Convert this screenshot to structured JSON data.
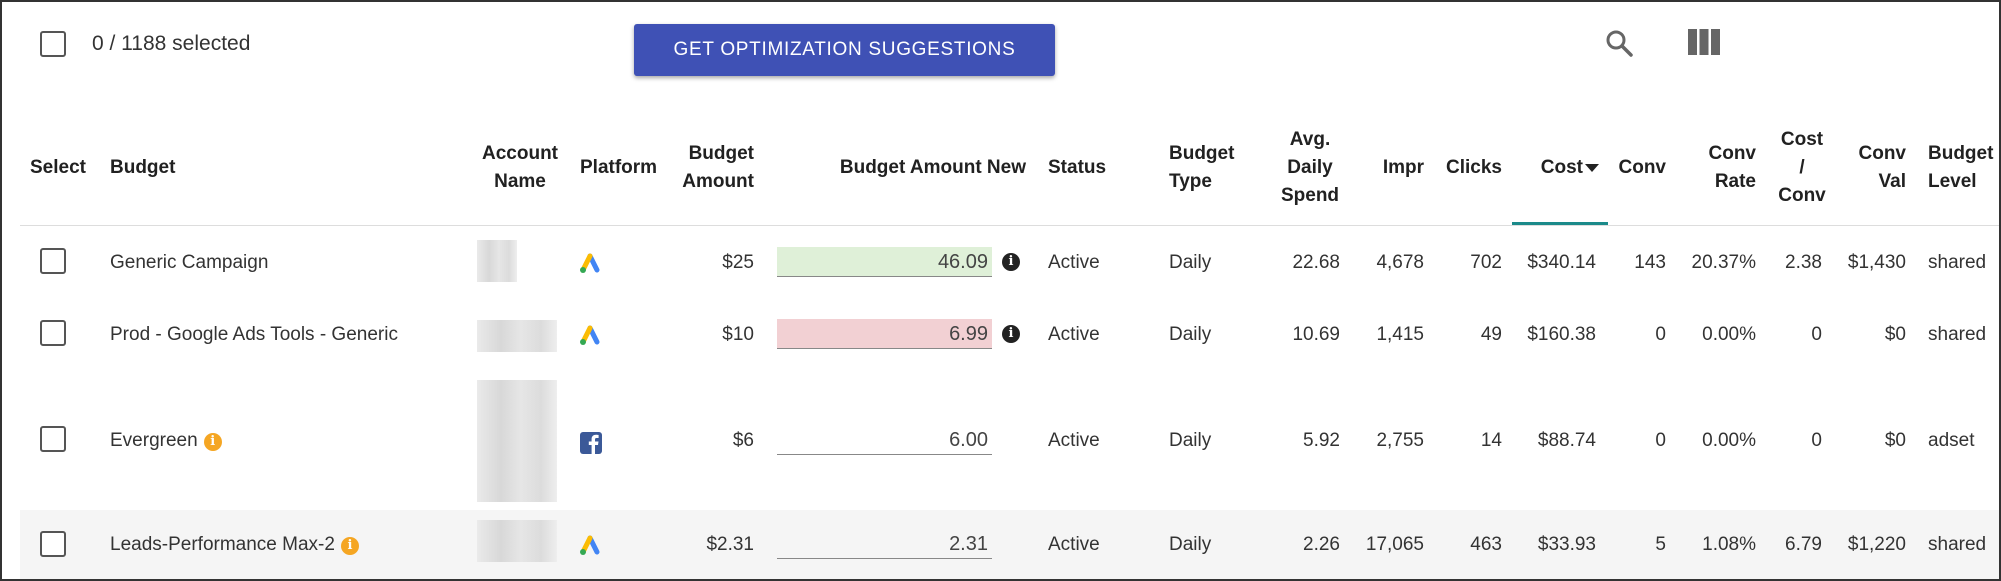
{
  "toolbar": {
    "selected_count": "0 / 1188 selected",
    "optimize_label": "GET OPTIMIZATION SUGGESTIONS",
    "search_icon": "search-icon",
    "columns_icon": "view-columns-icon"
  },
  "columns": {
    "select": "Select",
    "budget": "Budget",
    "account_1": "Account",
    "account_2": "Name",
    "platform": "Platform",
    "budget_amount_1": "Budget",
    "budget_amount_2": "Amount",
    "budget_amount_new": "Budget Amount New",
    "status": "Status",
    "budget_type_1": "Budget",
    "budget_type_2": "Type",
    "avg_1": "Avg.",
    "avg_2": "Daily",
    "avg_3": "Spend",
    "impr": "Impr",
    "clicks": "Clicks",
    "cost": "Cost",
    "conv": "Conv",
    "conv_rate_1": "Conv",
    "conv_rate_2": "Rate",
    "cost_conv_1": "Cost",
    "cost_conv_2": "/",
    "cost_conv_3": "Conv",
    "conv_val_1": "Conv",
    "conv_val_2": "Val",
    "budget_level_1": "Budget",
    "budget_level_2": "Level"
  },
  "rows": [
    {
      "budget": "Generic Campaign",
      "platform": "google-ads-icon",
      "budget_amount": "$25",
      "budget_new": "46.09",
      "change": "up",
      "status": "Active",
      "type": "Daily",
      "avg": "22.68",
      "impr": "4,678",
      "clicks": "702",
      "cost": "$340.14",
      "conv": "143",
      "conv_rate": "20.37%",
      "cost_conv": "2.38",
      "conv_val": "$1,430",
      "level": "shared"
    },
    {
      "budget": "Prod - Google Ads Tools - Generic",
      "platform": "google-ads-icon",
      "budget_amount": "$10",
      "budget_new": "6.99",
      "change": "down",
      "status": "Active",
      "type": "Daily",
      "avg": "10.69",
      "impr": "1,415",
      "clicks": "49",
      "cost": "$160.38",
      "conv": "0",
      "conv_rate": "0.00%",
      "cost_conv": "0",
      "conv_val": "$0",
      "level": "shared"
    },
    {
      "budget": "Evergreen",
      "platform": "facebook-icon",
      "budget_amount": "$6",
      "budget_new": "6.00",
      "change": "none",
      "status": "Active",
      "type": "Daily",
      "avg": "5.92",
      "impr": "2,755",
      "clicks": "14",
      "cost": "$88.74",
      "conv": "0",
      "conv_rate": "0.00%",
      "cost_conv": "0",
      "conv_val": "$0",
      "level": "adset"
    },
    {
      "budget": "Leads-Performance Max-2",
      "platform": "google-ads-icon",
      "budget_amount": "$2.31",
      "budget_new": "2.31",
      "change": "none",
      "status": "Active",
      "type": "Daily",
      "avg": "2.26",
      "impr": "17,065",
      "clicks": "463",
      "cost": "$33.93",
      "conv": "5",
      "conv_rate": "1.08%",
      "cost_conv": "6.79",
      "conv_val": "$1,220",
      "level": "shared"
    }
  ]
}
